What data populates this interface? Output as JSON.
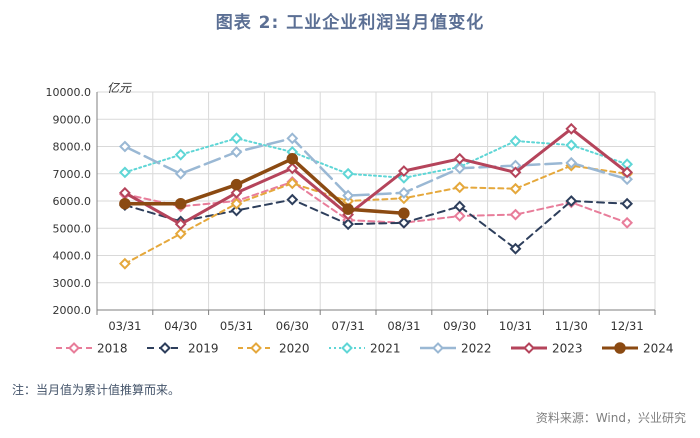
{
  "title": "图表 2:  工业企业利润当月值变化",
  "footnote": "注：当月值为累计值推算而来。",
  "source": "资料来源：Wind，兴业研究",
  "chart_data": {
    "type": "line",
    "ylabel": "亿元",
    "ylim": [
      2000,
      10000
    ],
    "yticks": [
      "2000.0",
      "3000.0",
      "4000.0",
      "5000.0",
      "6000.0",
      "7000.0",
      "8000.0",
      "9000.0",
      "10000.0"
    ],
    "yticks_values": [
      2000,
      3000,
      4000,
      5000,
      6000,
      7000,
      8000,
      9000,
      10000
    ],
    "categories": [
      "03/31",
      "04/30",
      "05/31",
      "06/30",
      "07/31",
      "08/31",
      "09/30",
      "10/31",
      "11/30",
      "12/31"
    ],
    "grid": true,
    "legend_position": "bottom",
    "series": [
      {
        "name": "2018",
        "color": "#e87d9a",
        "dash": "6,4",
        "width": 2,
        "marker": "diamond",
        "markerFill": "#ffffff",
        "values": [
          6250,
          5800,
          6000,
          6700,
          5300,
          5200,
          5450,
          5500,
          5950,
          5200
        ]
      },
      {
        "name": "2019",
        "color": "#2e3f5c",
        "dash": "7,5",
        "width": 2,
        "marker": "diamond",
        "markerFill": "#ffffff",
        "values": [
          5850,
          5250,
          5650,
          6050,
          5150,
          5200,
          5800,
          4250,
          6000,
          5900
        ]
      },
      {
        "name": "2020",
        "color": "#e5a83c",
        "dash": "5,4",
        "width": 2,
        "marker": "diamond",
        "markerFill": "#ffffff",
        "values": [
          3700,
          4800,
          5900,
          6650,
          6000,
          6100,
          6500,
          6450,
          7300,
          7000
        ]
      },
      {
        "name": "2021",
        "color": "#5fd6d6",
        "dash": "2,3",
        "width": 2,
        "marker": "diamond",
        "markerFill": "#ffffff",
        "values": [
          7050,
          7700,
          8300,
          7800,
          7000,
          6850,
          7250,
          8200,
          8050,
          7350
        ]
      },
      {
        "name": "2022",
        "color": "#9ab8d4",
        "dash": "16,6",
        "width": 2.5,
        "marker": "diamond",
        "markerFill": "#ffffff",
        "values": [
          8000,
          7000,
          7800,
          8300,
          6200,
          6300,
          7200,
          7300,
          7400,
          6800
        ]
      },
      {
        "name": "2023",
        "color": "#b5445b",
        "dash": "",
        "width": 3,
        "marker": "diamond",
        "markerFill": "#ffffff",
        "values": [
          6300,
          5150,
          6300,
          7200,
          5500,
          7100,
          7550,
          7050,
          8650,
          7050
        ]
      },
      {
        "name": "2024",
        "color": "#8b4a12",
        "dash": "",
        "width": 3.5,
        "marker": "circle",
        "markerFill": "#8b4a12",
        "values": [
          5900,
          5900,
          6600,
          7550,
          5700,
          5550,
          null,
          null,
          null,
          null
        ]
      }
    ]
  }
}
